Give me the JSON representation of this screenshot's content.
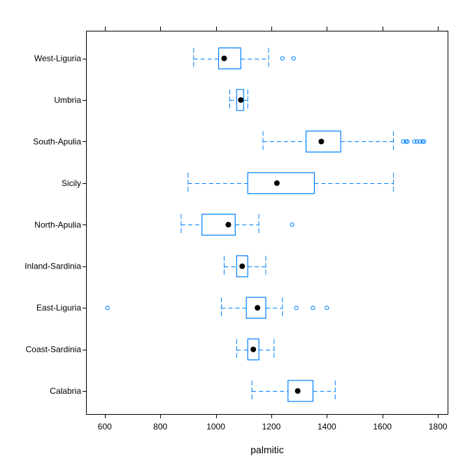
{
  "chart_data": {
    "type": "boxplot",
    "xlabel": "palmitic",
    "ylabel": "",
    "title": "",
    "xlim": [
      535,
      1835
    ],
    "x_ticks": [
      600,
      800,
      1000,
      1200,
      1400,
      1600,
      1800
    ],
    "x_tick_labels": [
      "600",
      "800",
      "1000",
      "1200",
      "1400",
      "1600",
      "1800"
    ],
    "colors": {
      "box": "#0080ff",
      "median": "#000000",
      "frame": "#000000"
    },
    "categories": [
      "West-Liguria",
      "Umbria",
      "South-Apulia",
      "Sicily",
      "North-Apulia",
      "Inland-Sardinia",
      "East-Liguria",
      "Coast-Sardinia",
      "Calabria"
    ],
    "boxes": [
      {
        "label": "West-Liguria",
        "whisker_low": 920,
        "q1": 1010,
        "median": 1030,
        "q3": 1090,
        "whisker_high": 1190,
        "outliers": [
          1240,
          1280
        ]
      },
      {
        "label": "Umbria",
        "whisker_low": 1050,
        "q1": 1075,
        "median": 1090,
        "q3": 1100,
        "whisker_high": 1115,
        "outliers": []
      },
      {
        "label": "South-Apulia",
        "whisker_low": 1170,
        "q1": 1325,
        "median": 1380,
        "q3": 1450,
        "whisker_high": 1640,
        "outliers": [
          1675,
          1685,
          1690,
          1715,
          1725,
          1735,
          1745,
          1750
        ]
      },
      {
        "label": "Sicily",
        "whisker_low": 900,
        "q1": 1115,
        "median": 1220,
        "q3": 1355,
        "whisker_high": 1640,
        "outliers": []
      },
      {
        "label": "North-Apulia",
        "whisker_low": 875,
        "q1": 950,
        "median": 1045,
        "q3": 1070,
        "whisker_high": 1155,
        "outliers": [
          1275
        ]
      },
      {
        "label": "Inland-Sardinia",
        "whisker_low": 1030,
        "q1": 1075,
        "median": 1095,
        "q3": 1115,
        "whisker_high": 1180,
        "outliers": []
      },
      {
        "label": "East-Liguria",
        "whisker_low": 1020,
        "q1": 1110,
        "median": 1150,
        "q3": 1180,
        "whisker_high": 1240,
        "outliers": [
          610,
          1290,
          1350,
          1400
        ]
      },
      {
        "label": "Coast-Sardinia",
        "whisker_low": 1075,
        "q1": 1115,
        "median": 1135,
        "q3": 1155,
        "whisker_high": 1210,
        "outliers": []
      },
      {
        "label": "Calabria",
        "whisker_low": 1130,
        "q1": 1260,
        "median": 1295,
        "q3": 1350,
        "whisker_high": 1430,
        "outliers": []
      }
    ]
  }
}
